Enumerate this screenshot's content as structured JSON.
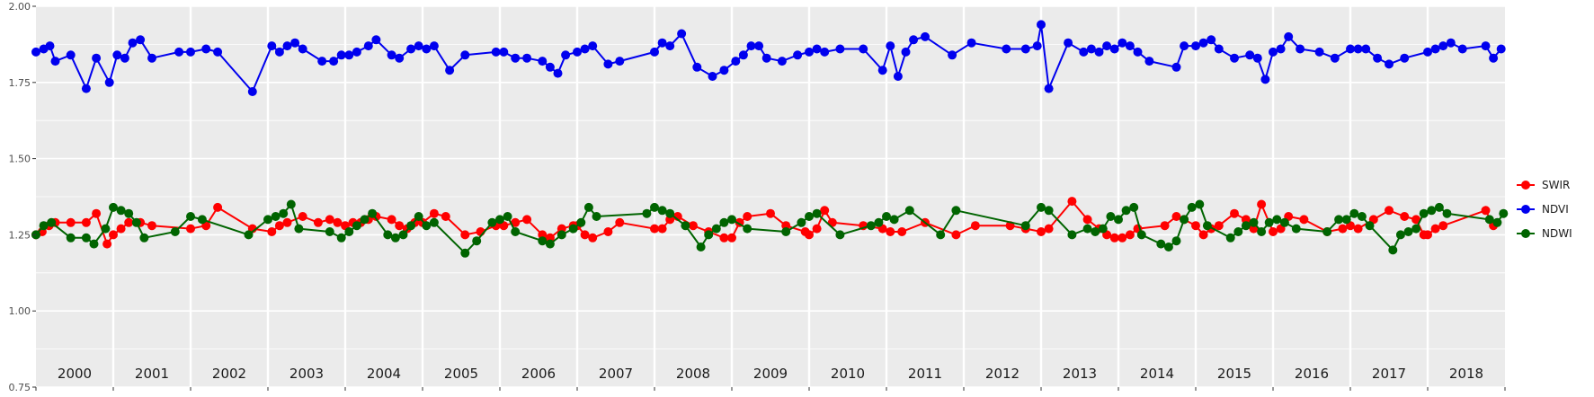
{
  "chart_data": {
    "type": "line",
    "title": "",
    "xlabel": "",
    "ylabel": "",
    "ylim": [
      0.75,
      2.0
    ],
    "xlim": [
      2000,
      2019
    ],
    "y_ticks": [
      "0.75",
      "1.00",
      "1.25",
      "1.50",
      "1.75",
      "2.00"
    ],
    "year_labels": [
      "2000",
      "2001",
      "2002",
      "2003",
      "2004",
      "2005",
      "2006",
      "2007",
      "2008",
      "2009",
      "2010",
      "2011",
      "2012",
      "2013",
      "2014",
      "2015",
      "2016",
      "2017",
      "2018"
    ],
    "grid": true,
    "legend_position": "right",
    "colors": {
      "SWIR": "#ff0000",
      "NDVI": "#0000ee",
      "NDWI": "#006400",
      "panel": "#ebebeb",
      "grid": "#ffffff"
    },
    "series": [
      {
        "name": "SWIR",
        "x": [
          2000.0,
          2000.08,
          2000.17,
          2000.25,
          2000.45,
          2000.65,
          2000.78,
          2000.92,
          2001.0,
          2001.1,
          2001.2,
          2001.35,
          2001.5,
          2002.0,
          2002.2,
          2002.35,
          2002.8,
          2003.05,
          2003.15,
          2003.25,
          2003.45,
          2003.65,
          2003.8,
          2003.9,
          2004.0,
          2004.1,
          2004.2,
          2004.3,
          2004.4,
          2004.6,
          2004.7,
          2004.8,
          2004.9,
          2005.0,
          2005.15,
          2005.3,
          2005.55,
          2005.75,
          2005.95,
          2006.05,
          2006.2,
          2006.35,
          2006.55,
          2006.65,
          2006.8,
          2006.95,
          2007.0,
          2007.1,
          2007.2,
          2007.4,
          2007.55,
          2008.0,
          2008.1,
          2008.2,
          2008.3,
          2008.5,
          2008.7,
          2008.9,
          2009.0,
          2009.1,
          2009.2,
          2009.5,
          2009.7,
          2009.95,
          2010.0,
          2010.1,
          2010.2,
          2010.3,
          2010.7,
          2010.95,
          2011.05,
          2011.2,
          2011.5,
          2011.9,
          2012.15,
          2012.6,
          2012.8,
          2013.0,
          2013.1,
          2013.4,
          2013.6,
          2013.75,
          2013.85,
          2013.95,
          2014.05,
          2014.15,
          2014.25,
          2014.6,
          2014.75,
          2014.85,
          2015.0,
          2015.1,
          2015.2,
          2015.3,
          2015.5,
          2015.65,
          2015.75,
          2015.85,
          2016.0,
          2016.1,
          2016.2,
          2016.4,
          2016.7,
          2016.9,
          2017.0,
          2017.1,
          2017.3,
          2017.5,
          2017.7,
          2017.85,
          2017.95,
          2018.0,
          2018.1,
          2018.2,
          2018.75,
          2018.85
        ],
        "values": [
          1.25,
          1.26,
          1.28,
          1.29,
          1.29,
          1.29,
          1.32,
          1.22,
          1.25,
          1.27,
          1.29,
          1.29,
          1.28,
          1.27,
          1.28,
          1.34,
          1.27,
          1.26,
          1.28,
          1.29,
          1.31,
          1.29,
          1.3,
          1.29,
          1.28,
          1.29,
          1.29,
          1.3,
          1.31,
          1.3,
          1.28,
          1.27,
          1.29,
          1.29,
          1.32,
          1.31,
          1.25,
          1.26,
          1.28,
          1.28,
          1.29,
          1.3,
          1.25,
          1.24,
          1.27,
          1.28,
          1.28,
          1.25,
          1.24,
          1.26,
          1.29,
          1.27,
          1.27,
          1.3,
          1.31,
          1.28,
          1.26,
          1.24,
          1.24,
          1.29,
          1.31,
          1.32,
          1.28,
          1.26,
          1.25,
          1.27,
          1.33,
          1.29,
          1.28,
          1.27,
          1.26,
          1.26,
          1.29,
          1.25,
          1.28,
          1.28,
          1.27,
          1.26,
          1.27,
          1.36,
          1.3,
          1.27,
          1.25,
          1.24,
          1.24,
          1.25,
          1.27,
          1.28,
          1.31,
          1.3,
          1.28,
          1.25,
          1.27,
          1.28,
          1.32,
          1.3,
          1.27,
          1.35,
          1.26,
          1.27,
          1.31,
          1.3,
          1.26,
          1.27,
          1.28,
          1.27,
          1.3,
          1.33,
          1.31,
          1.3,
          1.25,
          1.25,
          1.27,
          1.28,
          1.33,
          1.28
        ]
      },
      {
        "name": "NDVI",
        "x": [
          2000.0,
          2000.1,
          2000.18,
          2000.25,
          2000.45,
          2000.65,
          2000.78,
          2000.95,
          2001.05,
          2001.15,
          2001.25,
          2001.35,
          2001.5,
          2001.85,
          2002.0,
          2002.2,
          2002.35,
          2002.8,
          2003.05,
          2003.15,
          2003.25,
          2003.35,
          2003.45,
          2003.7,
          2003.85,
          2003.95,
          2004.05,
          2004.15,
          2004.3,
          2004.4,
          2004.6,
          2004.7,
          2004.85,
          2004.95,
          2005.05,
          2005.15,
          2005.35,
          2005.55,
          2005.95,
          2006.05,
          2006.2,
          2006.35,
          2006.55,
          2006.65,
          2006.75,
          2006.85,
          2007.0,
          2007.1,
          2007.2,
          2007.4,
          2007.55,
          2008.0,
          2008.1,
          2008.2,
          2008.35,
          2008.55,
          2008.75,
          2008.9,
          2009.05,
          2009.15,
          2009.25,
          2009.35,
          2009.45,
          2009.65,
          2009.85,
          2010.0,
          2010.1,
          2010.2,
          2010.4,
          2010.7,
          2010.95,
          2011.05,
          2011.15,
          2011.25,
          2011.35,
          2011.5,
          2011.85,
          2012.1,
          2012.55,
          2012.8,
          2012.95,
          2013.0,
          2013.1,
          2013.35,
          2013.55,
          2013.65,
          2013.75,
          2013.85,
          2013.95,
          2014.05,
          2014.15,
          2014.25,
          2014.4,
          2014.75,
          2014.85,
          2015.0,
          2015.1,
          2015.2,
          2015.3,
          2015.5,
          2015.7,
          2015.8,
          2015.9,
          2016.0,
          2016.1,
          2016.2,
          2016.35,
          2016.6,
          2016.8,
          2017.0,
          2017.1,
          2017.2,
          2017.35,
          2017.5,
          2017.7,
          2018.0,
          2018.1,
          2018.2,
          2018.3,
          2018.45,
          2018.75,
          2018.85,
          2018.95
        ],
        "values": [
          1.85,
          1.86,
          1.87,
          1.82,
          1.84,
          1.73,
          1.83,
          1.75,
          1.84,
          1.83,
          1.88,
          1.89,
          1.83,
          1.85,
          1.85,
          1.86,
          1.85,
          1.72,
          1.87,
          1.85,
          1.87,
          1.88,
          1.86,
          1.82,
          1.82,
          1.84,
          1.84,
          1.85,
          1.87,
          1.89,
          1.84,
          1.83,
          1.86,
          1.87,
          1.86,
          1.87,
          1.79,
          1.84,
          1.85,
          1.85,
          1.83,
          1.83,
          1.82,
          1.8,
          1.78,
          1.84,
          1.85,
          1.86,
          1.87,
          1.81,
          1.82,
          1.85,
          1.88,
          1.87,
          1.91,
          1.8,
          1.77,
          1.79,
          1.82,
          1.84,
          1.87,
          1.87,
          1.83,
          1.82,
          1.84,
          1.85,
          1.86,
          1.85,
          1.86,
          1.86,
          1.79,
          1.87,
          1.77,
          1.85,
          1.89,
          1.9,
          1.84,
          1.88,
          1.86,
          1.86,
          1.87,
          1.94,
          1.73,
          1.88,
          1.85,
          1.86,
          1.85,
          1.87,
          1.86,
          1.88,
          1.87,
          1.85,
          1.82,
          1.8,
          1.87,
          1.87,
          1.88,
          1.89,
          1.86,
          1.83,
          1.84,
          1.83,
          1.76,
          1.85,
          1.86,
          1.9,
          1.86,
          1.85,
          1.83,
          1.86,
          1.86,
          1.86,
          1.83,
          1.81,
          1.83,
          1.85,
          1.86,
          1.87,
          1.88,
          1.86,
          1.87,
          1.83,
          1.86
        ]
      },
      {
        "name": "NDWI",
        "x": [
          2000.0,
          2000.1,
          2000.2,
          2000.45,
          2000.65,
          2000.75,
          2000.9,
          2001.0,
          2001.1,
          2001.2,
          2001.3,
          2001.4,
          2001.8,
          2002.0,
          2002.15,
          2002.75,
          2003.0,
          2003.1,
          2003.2,
          2003.3,
          2003.4,
          2003.8,
          2003.95,
          2004.05,
          2004.15,
          2004.25,
          2004.35,
          2004.55,
          2004.65,
          2004.75,
          2004.85,
          2004.95,
          2005.05,
          2005.15,
          2005.55,
          2005.7,
          2005.9,
          2006.0,
          2006.1,
          2006.2,
          2006.55,
          2006.65,
          2006.8,
          2006.95,
          2007.05,
          2007.15,
          2007.25,
          2007.9,
          2008.0,
          2008.1,
          2008.2,
          2008.4,
          2008.6,
          2008.7,
          2008.8,
          2008.9,
          2009.0,
          2009.2,
          2009.7,
          2009.9,
          2010.0,
          2010.1,
          2010.4,
          2010.8,
          2010.9,
          2011.0,
          2011.1,
          2011.3,
          2011.7,
          2011.9,
          2012.8,
          2013.0,
          2013.1,
          2013.4,
          2013.6,
          2013.7,
          2013.8,
          2013.9,
          2014.0,
          2014.1,
          2014.2,
          2014.3,
          2014.55,
          2014.65,
          2014.75,
          2014.85,
          2014.95,
          2015.05,
          2015.15,
          2015.45,
          2015.55,
          2015.65,
          2015.75,
          2015.85,
          2015.95,
          2016.05,
          2016.15,
          2016.3,
          2016.7,
          2016.85,
          2016.95,
          2017.05,
          2017.15,
          2017.25,
          2017.55,
          2017.65,
          2017.75,
          2017.85,
          2017.95,
          2018.05,
          2018.15,
          2018.25,
          2018.8,
          2018.9,
          2018.98
        ],
        "values": [
          1.25,
          1.28,
          1.29,
          1.24,
          1.24,
          1.22,
          1.27,
          1.34,
          1.33,
          1.32,
          1.29,
          1.24,
          1.26,
          1.31,
          1.3,
          1.25,
          1.3,
          1.31,
          1.32,
          1.35,
          1.27,
          1.26,
          1.24,
          1.26,
          1.28,
          1.3,
          1.32,
          1.25,
          1.24,
          1.25,
          1.28,
          1.31,
          1.28,
          1.29,
          1.19,
          1.23,
          1.29,
          1.3,
          1.31,
          1.26,
          1.23,
          1.22,
          1.25,
          1.27,
          1.29,
          1.34,
          1.31,
          1.32,
          1.34,
          1.33,
          1.32,
          1.28,
          1.21,
          1.25,
          1.27,
          1.29,
          1.3,
          1.27,
          1.26,
          1.29,
          1.31,
          1.32,
          1.25,
          1.28,
          1.29,
          1.31,
          1.3,
          1.33,
          1.25,
          1.33,
          1.28,
          1.34,
          1.33,
          1.25,
          1.27,
          1.26,
          1.27,
          1.31,
          1.3,
          1.33,
          1.34,
          1.25,
          1.22,
          1.21,
          1.23,
          1.3,
          1.34,
          1.35,
          1.28,
          1.24,
          1.26,
          1.28,
          1.29,
          1.26,
          1.29,
          1.3,
          1.29,
          1.27,
          1.26,
          1.3,
          1.3,
          1.32,
          1.31,
          1.28,
          1.2,
          1.25,
          1.26,
          1.27,
          1.32,
          1.33,
          1.34,
          1.32,
          1.3,
          1.29,
          1.32
        ]
      }
    ]
  }
}
